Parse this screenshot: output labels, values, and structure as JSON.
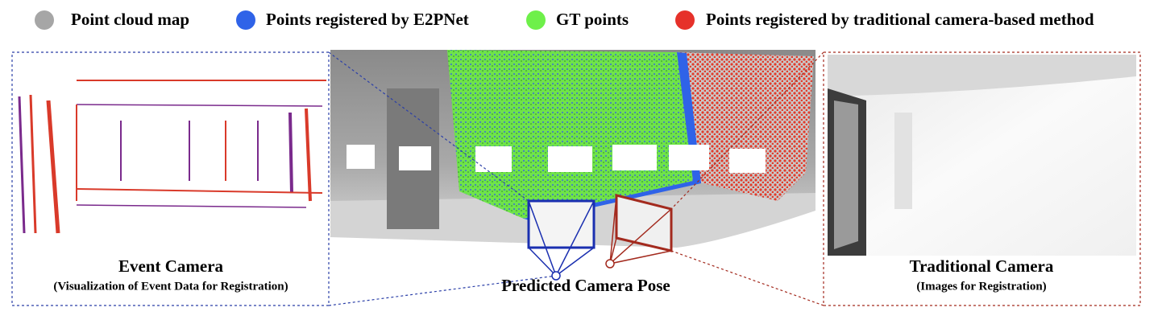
{
  "legend": {
    "items": [
      "Point cloud map",
      "Points registered by E2PNet",
      "GT points",
      "Points registered by traditional camera-based method"
    ]
  },
  "left_panel": {
    "title": "Event Camera",
    "subtitle": "(Visualization of Event Data for Registration)"
  },
  "center": {
    "label": "Predicted Camera Pose"
  },
  "right_panel": {
    "title": "Traditional Camera",
    "subtitle": "(Images for Registration)"
  }
}
